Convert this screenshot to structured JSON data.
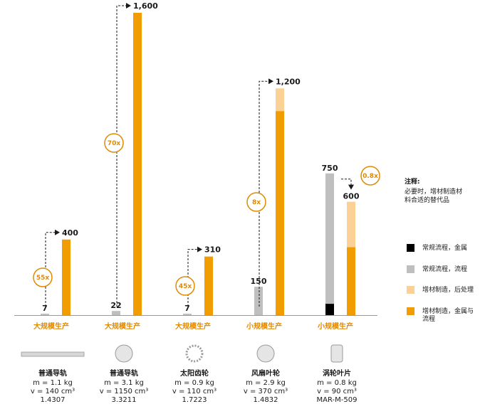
{
  "chart_data": {
    "type": "bar",
    "groups": [
      {
        "production": "大规模生产",
        "conventional": {
          "metal": 0,
          "process": 7,
          "label": "7"
        },
        "additive": {
          "post": 0,
          "metal_process": 400,
          "total": 400,
          "label": "400"
        },
        "multiplier": "55x",
        "part": {
          "name": "普通导轨",
          "mass": "m = 1.1 kg",
          "volume": "v = 140 cm³",
          "material": "1.4307",
          "icon": "rail-icon"
        }
      },
      {
        "production": "大规模生产",
        "conventional": {
          "metal": 0,
          "process": 22,
          "label": "22"
        },
        "additive": {
          "post": 0,
          "metal_process": 1600,
          "total": 1600,
          "label": "1,600"
        },
        "multiplier": "70x",
        "part": {
          "name": "普通导轨",
          "mass": "m = 3.1 kg",
          "volume": "v = 1150 cm³",
          "material": "3.3211",
          "icon": "disc-icon"
        }
      },
      {
        "production": "大规模生产",
        "conventional": {
          "metal": 0,
          "process": 7,
          "label": "7"
        },
        "additive": {
          "post": 0,
          "metal_process": 310,
          "total": 310,
          "label": "310"
        },
        "multiplier": "45x",
        "part": {
          "name": "太阳齿轮",
          "mass": "m = 0.9 kg",
          "volume": "v = 110 cm³",
          "material": "1.7223",
          "icon": "gear-icon"
        }
      },
      {
        "production": "小规模生产",
        "conventional": {
          "metal": 0,
          "process": 150,
          "label": "150"
        },
        "additive": {
          "post": 120,
          "metal_process": 1080,
          "total": 1200,
          "label": "1,200"
        },
        "multiplier": "8x",
        "part": {
          "name": "风扇叶轮",
          "mass": "m = 2.9 kg",
          "volume": "v = 370 cm³",
          "material": "1.4832",
          "icon": "impeller-icon"
        }
      },
      {
        "production": "小规模生产",
        "conventional": {
          "metal": 60,
          "process": 690,
          "label": "750"
        },
        "additive": {
          "post": 240,
          "metal_process": 360,
          "total": 600,
          "label": "600"
        },
        "multiplier": "0.8x",
        "part": {
          "name": "涡轮叶片",
          "mass": "m = 0.8 kg",
          "volume": "v = 90 cm³",
          "material": "MAR-M-509",
          "icon": "blade-icon"
        }
      }
    ],
    "ylim": [
      0,
      1600
    ],
    "legend": [
      {
        "label": "常规流程，金属",
        "color": "#000000"
      },
      {
        "label": "常规流程，流程",
        "color": "#bfbfbf"
      },
      {
        "label": "增材制造，后处理",
        "color": "#fcd196"
      },
      {
        "label": "增材制造，金属与流程",
        "color": "#f19c00"
      }
    ],
    "note_title": "注释:",
    "note_text": "必要时，增材制造材料合适的替代品"
  },
  "colors": {
    "orange": "#f19c00",
    "light_orange": "#fcd196",
    "gray": "#bfbfbf",
    "black": "#000000",
    "label_orange": "#e08a00"
  }
}
